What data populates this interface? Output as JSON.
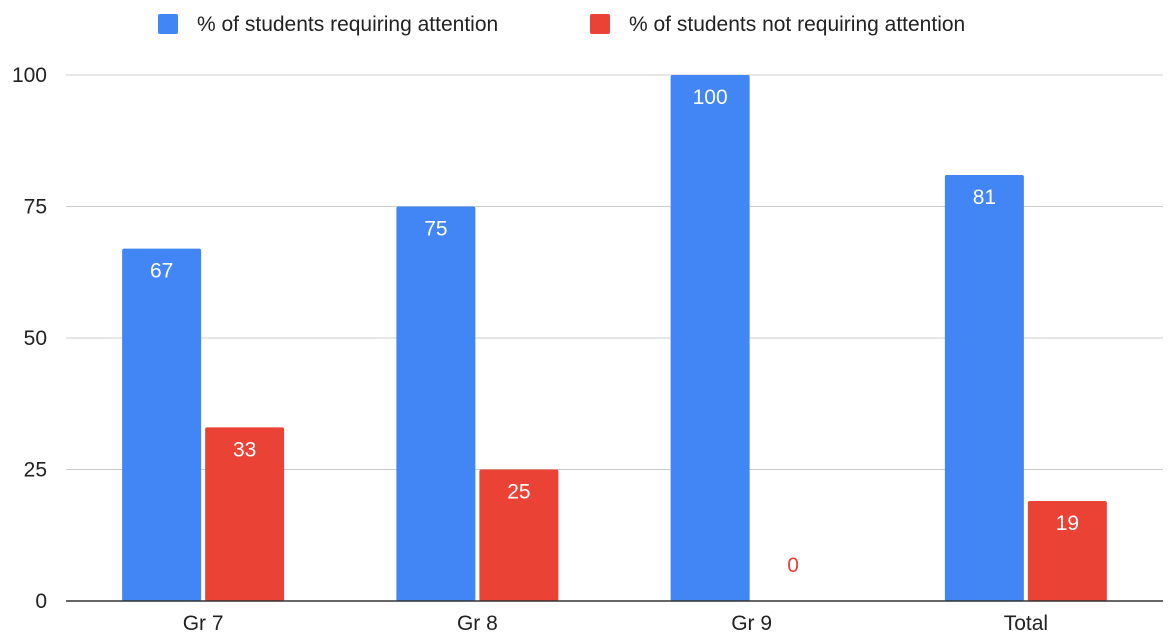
{
  "chart_data": {
    "type": "bar",
    "categories": [
      "Gr 7",
      "Gr 8",
      "Gr 9",
      "Total"
    ],
    "series": [
      {
        "name": "% of students requiring attention",
        "color": "#4285f4",
        "values": [
          67,
          75,
          100,
          81
        ]
      },
      {
        "name": "% of students not requiring attention",
        "color": "#ea4335",
        "values": [
          33,
          25,
          0,
          19
        ]
      }
    ],
    "title": "",
    "xlabel": "",
    "ylabel": "",
    "ylim": [
      0,
      100
    ],
    "yticks": [
      0,
      25,
      50,
      75,
      100
    ],
    "grid": true,
    "legend_position": "top-center",
    "data_labels": true
  }
}
